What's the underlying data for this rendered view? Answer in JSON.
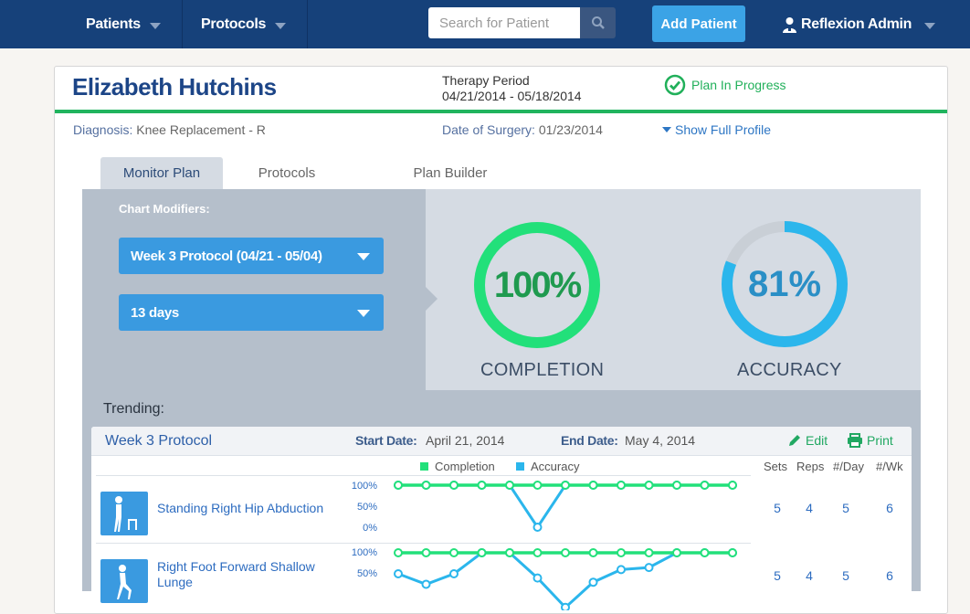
{
  "nav": {
    "patients": "Patients",
    "protocols": "Protocols",
    "search_placeholder": "Search for Patient",
    "add_patient": "Add Patient",
    "user": "Reflexion Admin"
  },
  "patient": {
    "name": "Elizabeth Hutchins",
    "therapy_label": "Therapy Period",
    "therapy_dates": "04/21/2014 - 05/18/2014",
    "status": "Plan In Progress",
    "diagnosis_label": "Diagnosis:",
    "diagnosis": "Knee Replacement - R",
    "surgery_label": "Date of Surgery:",
    "surgery_date": "01/23/2014",
    "show_profile": "Show Full Profile"
  },
  "tabs": [
    "Monitor Plan",
    "Protocols",
    "Plan Builder"
  ],
  "modifiers": {
    "label": "Chart Modifiers:",
    "protocol": "Week 3 Protocol (04/21 - 05/04)",
    "days": "13 days"
  },
  "metrics": {
    "completion": {
      "value": "100%",
      "label": "COMPLETION",
      "fraction": 1.0,
      "color": "#22e07a"
    },
    "accuracy": {
      "value": "81%",
      "label": "ACCURACY",
      "fraction": 0.81,
      "color": "#2bb6ec"
    }
  },
  "trending": {
    "label": "Trending:",
    "protocol": "Week 3 Protocol",
    "start_label": "Start Date:",
    "start_date": "April 21, 2014",
    "end_label": "End Date:",
    "end_date": "May 4, 2014",
    "edit": "Edit",
    "print": "Print",
    "legend_completion": "Completion",
    "legend_accuracy": "Accuracy",
    "cols": [
      "Sets",
      "Reps",
      "#/Day",
      "#/Wk"
    ],
    "ticks": [
      "100%",
      "50%",
      "0%"
    ]
  },
  "chart_data": {
    "type": "line",
    "series_names": [
      "Completion",
      "Accuracy"
    ],
    "rows": [
      {
        "exercise": "Standing Right Hip Abduction",
        "completion": [
          100,
          100,
          100,
          100,
          100,
          100,
          100,
          100,
          100,
          100,
          100,
          100,
          100
        ],
        "accuracy": [
          100,
          100,
          100,
          100,
          100,
          0,
          100,
          100,
          100,
          100,
          100,
          100,
          100
        ],
        "sets": "5",
        "reps": "4",
        "per_day": "5",
        "per_wk": "6"
      },
      {
        "exercise": "Right Foot Forward Shallow Lunge",
        "completion": [
          100,
          100,
          100,
          100,
          100,
          100,
          100,
          100,
          100,
          100,
          100,
          100,
          100
        ],
        "accuracy": [
          50,
          25,
          50,
          100,
          100,
          40,
          -30,
          30,
          60,
          65,
          100,
          100,
          100
        ],
        "sets": "5",
        "reps": "4",
        "per_day": "5",
        "per_wk": "6"
      }
    ]
  }
}
